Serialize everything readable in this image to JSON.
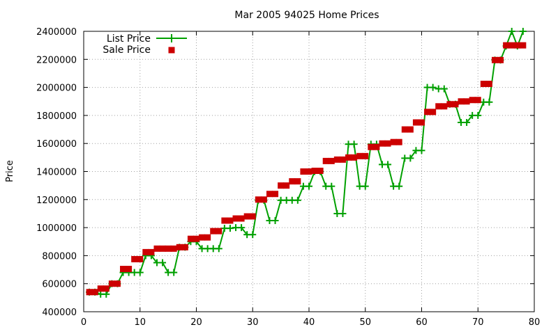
{
  "chart_data": {
    "type": "line",
    "title": "Mar 2005 94025 Home Prices",
    "xlabel": "",
    "ylabel": "Price",
    "xlim": [
      0,
      80
    ],
    "ylim": [
      400000,
      2400000
    ],
    "x_ticks": [
      0,
      10,
      20,
      30,
      40,
      50,
      60,
      70,
      80
    ],
    "y_ticks": [
      400000,
      600000,
      800000,
      1000000,
      1200000,
      1400000,
      1600000,
      1800000,
      2000000,
      2200000,
      2400000
    ],
    "grid": true,
    "legend_position": "top-left",
    "series": [
      {
        "name": "List Price",
        "style": "line-with-plus-markers",
        "color": "#00a000",
        "x": [
          1,
          2,
          3,
          4,
          5,
          6,
          7,
          8,
          9,
          10,
          11,
          12,
          13,
          14,
          15,
          16,
          17,
          18,
          19,
          20,
          21,
          22,
          23,
          24,
          25,
          26,
          27,
          28,
          29,
          30,
          31,
          32,
          33,
          34,
          35,
          36,
          37,
          38,
          39,
          40,
          41,
          42,
          43,
          44,
          45,
          46,
          47,
          48,
          49,
          50,
          51,
          52,
          53,
          54,
          55,
          56,
          57,
          58,
          59,
          60,
          61,
          62,
          63,
          64,
          65,
          66,
          67,
          68,
          69,
          70,
          71,
          72,
          73,
          74,
          75,
          76,
          77,
          78
        ],
        "values": [
          540000,
          540000,
          525000,
          525000,
          600000,
          600000,
          680000,
          680000,
          680000,
          680000,
          800000,
          800000,
          750000,
          750000,
          680000,
          680000,
          860000,
          860000,
          900000,
          900000,
          850000,
          850000,
          850000,
          850000,
          995000,
          995000,
          1000000,
          1000000,
          950000,
          950000,
          1195000,
          1195000,
          1050000,
          1050000,
          1195000,
          1195000,
          1195000,
          1195000,
          1295000,
          1295000,
          1400000,
          1400000,
          1295000,
          1295000,
          1100000,
          1100000,
          1595000,
          1595000,
          1295000,
          1295000,
          1595000,
          1595000,
          1450000,
          1450000,
          1295000,
          1295000,
          1495000,
          1495000,
          1550000,
          1550000,
          2000000,
          2000000,
          1990000,
          1990000,
          1880000,
          1880000,
          1750000,
          1750000,
          1800000,
          1800000,
          1895000,
          1895000,
          2195000,
          2195000,
          2295000,
          2400000,
          2295000,
          2400000
        ]
      },
      {
        "name": "Sale Price",
        "style": "square-markers",
        "color": "#cc0000",
        "x": [
          1,
          2,
          3,
          4,
          5,
          6,
          7,
          8,
          9,
          10,
          11,
          12,
          13,
          14,
          15,
          16,
          17,
          18,
          19,
          20,
          21,
          22,
          23,
          24,
          25,
          26,
          27,
          28,
          29,
          30,
          31,
          32,
          33,
          34,
          35,
          36,
          37,
          38,
          39,
          40,
          41,
          42,
          43,
          44,
          45,
          46,
          47,
          48,
          49,
          50,
          51,
          52,
          53,
          54,
          55,
          56,
          57,
          58,
          59,
          60,
          61,
          62,
          63,
          64,
          65,
          66,
          67,
          68,
          69,
          70,
          71,
          72,
          73,
          74,
          75,
          76,
          77,
          78
        ],
        "values": [
          540000,
          540000,
          565000,
          565000,
          600000,
          600000,
          705000,
          705000,
          775000,
          775000,
          825000,
          825000,
          850000,
          850000,
          850000,
          850000,
          860000,
          860000,
          920000,
          920000,
          930000,
          930000,
          975000,
          975000,
          1050000,
          1050000,
          1065000,
          1065000,
          1080000,
          1080000,
          1200000,
          1200000,
          1240000,
          1240000,
          1300000,
          1300000,
          1330000,
          1330000,
          1400000,
          1400000,
          1405000,
          1405000,
          1475000,
          1475000,
          1485000,
          1485000,
          1500000,
          1500000,
          1510000,
          1510000,
          1575000,
          1575000,
          1600000,
          1600000,
          1610000,
          1610000,
          1700000,
          1700000,
          1750000,
          1750000,
          1825000,
          1825000,
          1865000,
          1865000,
          1880000,
          1880000,
          1900000,
          1900000,
          1910000,
          1910000,
          2025000,
          2025000,
          2195000,
          2195000,
          2300000,
          2300000,
          2300000,
          2300000
        ]
      }
    ]
  }
}
